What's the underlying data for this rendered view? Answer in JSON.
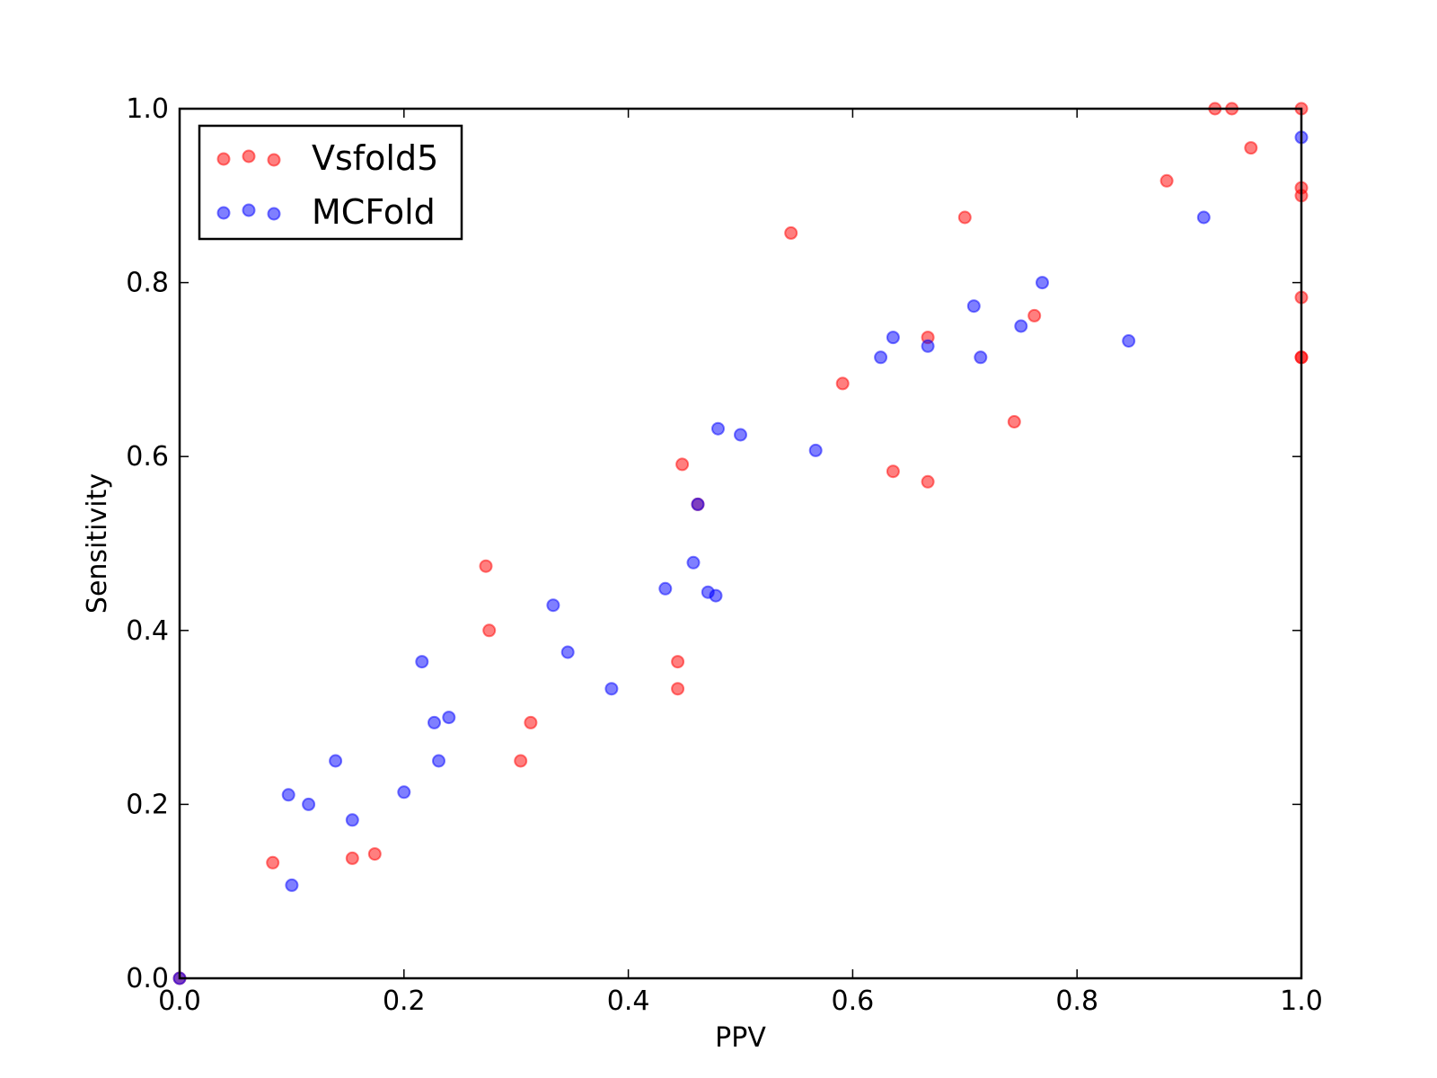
{
  "chart_data": {
    "type": "scatter",
    "xlabel": "PPV",
    "ylabel": "Sensitivity",
    "xlim": [
      0.0,
      1.0
    ],
    "ylim": [
      0.0,
      1.0
    ],
    "xticks": [
      "0.0",
      "0.2",
      "0.4",
      "0.6",
      "0.8",
      "1.0"
    ],
    "yticks": [
      "0.0",
      "0.2",
      "0.4",
      "0.6",
      "0.8",
      "1.0"
    ],
    "grid": false,
    "legend_position": "top-left",
    "series": [
      {
        "name": "Vsfold5",
        "color": "#ff0000",
        "points": [
          [
            0.0,
            0.0
          ],
          [
            0.083,
            0.133
          ],
          [
            0.154,
            0.138
          ],
          [
            0.174,
            0.143
          ],
          [
            0.273,
            0.474
          ],
          [
            0.276,
            0.4
          ],
          [
            0.304,
            0.25
          ],
          [
            0.313,
            0.294
          ],
          [
            0.444,
            0.364
          ],
          [
            0.444,
            0.333
          ],
          [
            0.448,
            0.591
          ],
          [
            0.462,
            0.545
          ],
          [
            0.545,
            0.857
          ],
          [
            0.591,
            0.684
          ],
          [
            0.636,
            0.583
          ],
          [
            0.667,
            0.571
          ],
          [
            0.667,
            0.737
          ],
          [
            0.7,
            0.875
          ],
          [
            0.744,
            0.64
          ],
          [
            0.762,
            0.762
          ],
          [
            0.88,
            0.917
          ],
          [
            0.923,
            1.0
          ],
          [
            0.938,
            1.0
          ],
          [
            0.955,
            0.955
          ],
          [
            1.0,
            1.0
          ],
          [
            1.0,
            0.909
          ],
          [
            1.0,
            0.9
          ],
          [
            1.0,
            0.783
          ],
          [
            1.0,
            0.714
          ],
          [
            1.0,
            0.714
          ]
        ]
      },
      {
        "name": "MCFold",
        "color": "#0000ff",
        "points": [
          [
            0.0,
            0.0
          ],
          [
            0.097,
            0.211
          ],
          [
            0.1,
            0.107
          ],
          [
            0.115,
            0.2
          ],
          [
            0.139,
            0.25
          ],
          [
            0.154,
            0.182
          ],
          [
            0.2,
            0.214
          ],
          [
            0.216,
            0.364
          ],
          [
            0.227,
            0.294
          ],
          [
            0.231,
            0.25
          ],
          [
            0.24,
            0.3
          ],
          [
            0.333,
            0.429
          ],
          [
            0.346,
            0.375
          ],
          [
            0.385,
            0.333
          ],
          [
            0.433,
            0.448
          ],
          [
            0.458,
            0.478
          ],
          [
            0.462,
            0.545
          ],
          [
            0.471,
            0.444
          ],
          [
            0.478,
            0.44
          ],
          [
            0.48,
            0.632
          ],
          [
            0.5,
            0.625
          ],
          [
            0.567,
            0.607
          ],
          [
            0.625,
            0.714
          ],
          [
            0.636,
            0.737
          ],
          [
            0.667,
            0.727
          ],
          [
            0.708,
            0.773
          ],
          [
            0.714,
            0.714
          ],
          [
            0.75,
            0.75
          ],
          [
            0.769,
            0.8
          ],
          [
            0.846,
            0.733
          ],
          [
            0.913,
            0.875
          ],
          [
            1.0,
            0.967
          ]
        ]
      }
    ]
  }
}
